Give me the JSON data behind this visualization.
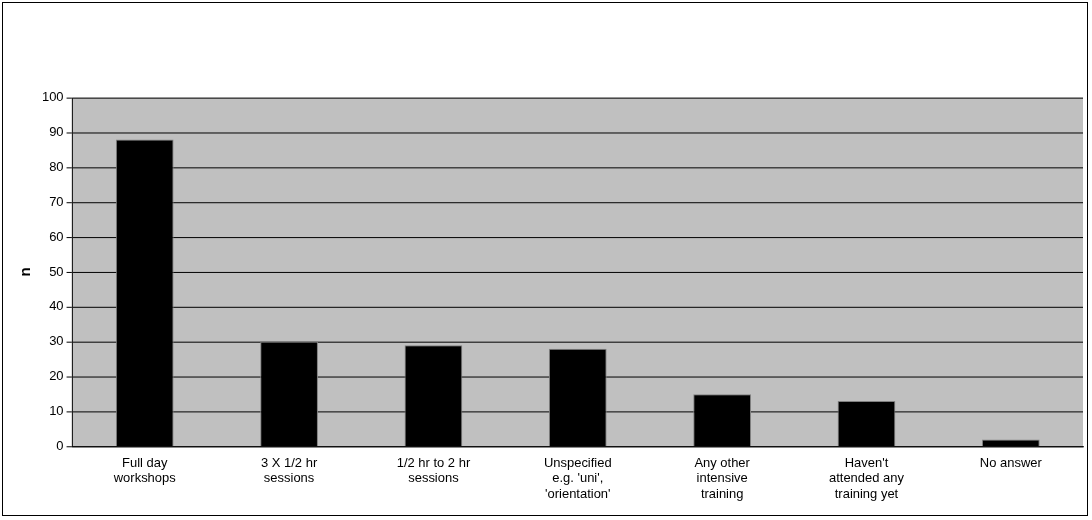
{
  "chart_data": {
    "type": "bar",
    "ylabel": "n",
    "categories": [
      "Full day workshops",
      "3 X 1/2 hr sessions",
      "1/2 hr to 2 hr sessions",
      "Unspecified e.g. 'uni', 'orientation'",
      "Any other intensive training",
      "Haven't attended any training yet",
      "No answer"
    ],
    "values": [
      88,
      30,
      29,
      28,
      15,
      13,
      2
    ],
    "color": "#000000",
    "ylim": [
      0,
      100
    ],
    "yticks": [
      0,
      10,
      20,
      30,
      40,
      50,
      60,
      70,
      80,
      90,
      100
    ],
    "grid": "y",
    "legend": false
  }
}
